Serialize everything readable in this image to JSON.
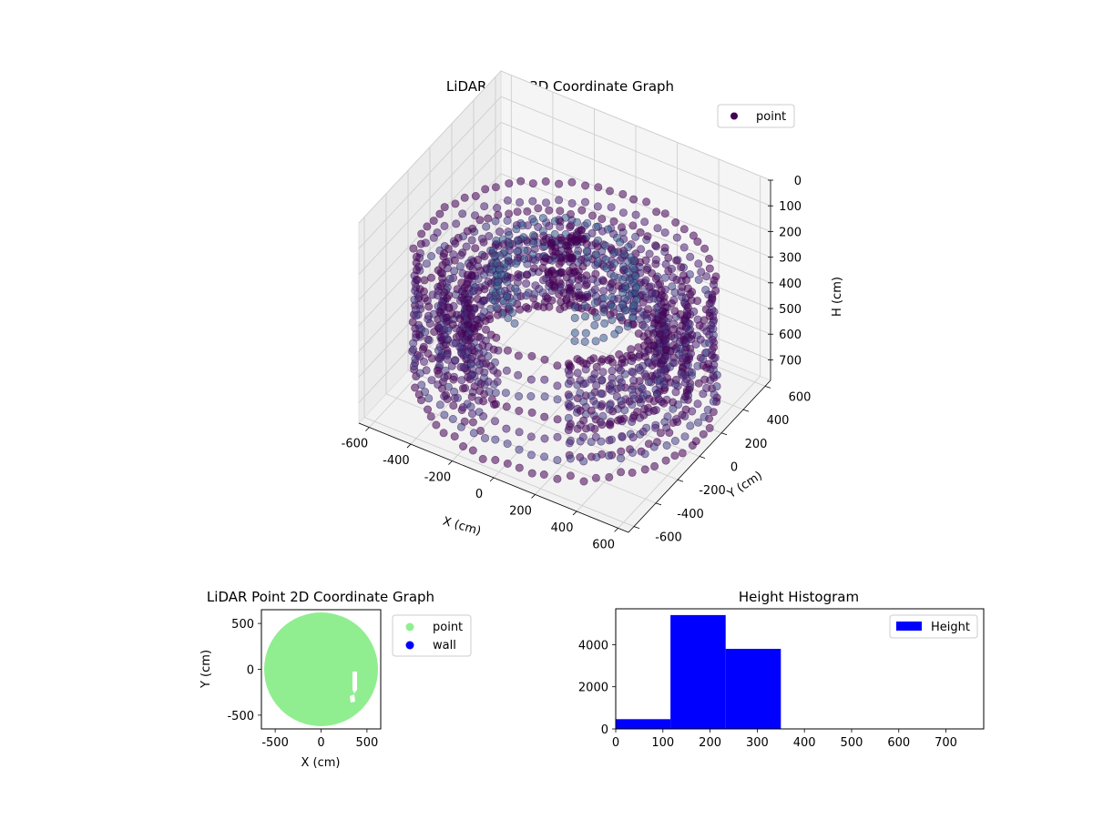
{
  "chart_data": [
    {
      "type": "scatter3d",
      "title": "LiDAR Point 3D Coordinate Graph",
      "xlabel": "X (cm)",
      "ylabel": "Y (cm)",
      "zlabel": "H (cm)",
      "xlim": [
        -650,
        650
      ],
      "ylim": [
        -650,
        650
      ],
      "zlim": [
        0,
        780
      ],
      "z_inverted": true,
      "xticks": [
        -600,
        -400,
        -200,
        0,
        200,
        400,
        600
      ],
      "yticks": [
        -600,
        -400,
        -200,
        0,
        200,
        400,
        600
      ],
      "zticks": [
        0,
        100,
        200,
        300,
        400,
        500,
        600,
        700
      ],
      "grid": true,
      "legend": {
        "placement": "top-right",
        "entries": [
          {
            "label": "point",
            "color": "#440154"
          }
        ]
      },
      "rings": [
        {
          "radius": 640,
          "h_min": 280,
          "h_max": 720
        },
        {
          "radius": 530,
          "h_min": 330,
          "h_max": 700
        },
        {
          "radius": 430,
          "h_min": 380,
          "h_max": 640
        },
        {
          "radius": 300,
          "h_min": 240,
          "h_max": 380
        }
      ],
      "central_cluster": {
        "x": 0,
        "y": 0,
        "h_min": 120,
        "h_max": 400
      },
      "cmap": [
        "#440154",
        "#482475",
        "#414487",
        "#355f8d",
        "#2a788e"
      ]
    },
    {
      "type": "scatter",
      "title": "LiDAR Point 2D Coordinate Graph",
      "xlabel": "X (cm)",
      "ylabel": "Y (cm)",
      "xlim": [
        -650,
        650
      ],
      "ylim": [
        -650,
        650
      ],
      "xticks": [
        -500,
        0,
        500
      ],
      "yticks": [
        -500,
        0,
        500
      ],
      "legend": {
        "placement": "outside-right",
        "entries": [
          {
            "label": "point",
            "color": "#90ee90"
          },
          {
            "label": "wall",
            "color": "#0000ff"
          }
        ]
      },
      "point_region": {
        "shape": "disc",
        "center": [
          0,
          0
        ],
        "radius": 620
      }
    },
    {
      "type": "bar",
      "title": "Height Histogram",
      "xlabel": "",
      "ylabel": "",
      "xlim": [
        0,
        780
      ],
      "ylim": [
        0,
        5700
      ],
      "xticks": [
        0,
        100,
        200,
        300,
        400,
        500,
        600,
        700
      ],
      "yticks": [
        0,
        2000,
        4000
      ],
      "bins": [
        {
          "x0": 0,
          "x1": 116,
          "count": 460
        },
        {
          "x0": 116,
          "x1": 233,
          "count": 5400
        },
        {
          "x0": 233,
          "x1": 350,
          "count": 3800
        }
      ],
      "color": "#0000ff",
      "legend": {
        "placement": "top-right",
        "entries": [
          {
            "label": "Height",
            "color": "#0000ff"
          }
        ]
      }
    }
  ]
}
